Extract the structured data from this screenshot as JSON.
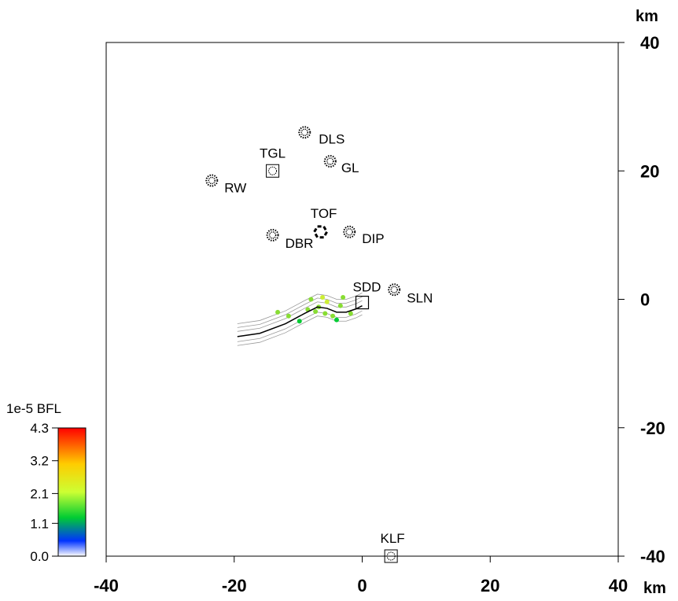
{
  "map": {
    "x_unit": "km",
    "y_unit": "km",
    "x_range": [
      -40,
      40
    ],
    "y_range": [
      -40,
      40
    ],
    "x_ticks": [
      {
        "value": -40,
        "label": "-40"
      },
      {
        "value": -20,
        "label": "-20"
      },
      {
        "value": 0,
        "label": "0"
      },
      {
        "value": 20,
        "label": "20"
      },
      {
        "value": 40,
        "label": "40"
      }
    ],
    "y_ticks": [
      {
        "value": 40,
        "label": "40"
      },
      {
        "value": 20,
        "label": "20"
      },
      {
        "value": 0,
        "label": "0"
      },
      {
        "value": -20,
        "label": "-20"
      },
      {
        "value": -40,
        "label": "-40"
      }
    ],
    "sites": [
      {
        "label": "DLS",
        "x": -9,
        "y": 26,
        "marker": "dotted-circle"
      },
      {
        "label": "TGL",
        "x": -14,
        "y": 20,
        "marker": "square-circle"
      },
      {
        "label": "GL",
        "x": -5,
        "y": 21.5,
        "marker": "dotted-circle"
      },
      {
        "label": "RW",
        "x": -23.5,
        "y": 18.5,
        "marker": "dotted-circle"
      },
      {
        "label": "TOF",
        "x": -6.5,
        "y": 10.5,
        "marker": "hexagon"
      },
      {
        "label": "DBR",
        "x": -14,
        "y": 10,
        "marker": "dotted-circle"
      },
      {
        "label": "DIP",
        "x": -2,
        "y": 10.5,
        "marker": "dotted-circle"
      },
      {
        "label": "SDD",
        "x": 0,
        "y": -0.5,
        "marker": "square"
      },
      {
        "label": "SLN",
        "x": 5,
        "y": 1.5,
        "marker": "dotted-circle"
      },
      {
        "label": "KLF",
        "x": 4.5,
        "y": -40,
        "marker": "square-circle"
      }
    ],
    "source_line": [
      [
        -19.5,
        -5.8
      ],
      [
        -16,
        -5.3
      ],
      [
        -12,
        -3.8
      ],
      [
        -9,
        -2.2
      ],
      [
        -7,
        -1.2
      ],
      [
        -5.5,
        -1.4
      ],
      [
        -4,
        -2.0
      ],
      [
        -2.5,
        -2.0
      ],
      [
        -1,
        -1.5
      ],
      [
        0,
        -1.0
      ]
    ],
    "deposition_points": [
      {
        "x": -6.2,
        "y": 0.3,
        "level": 2.8
      },
      {
        "x": -5.5,
        "y": -0.4,
        "level": 2.3
      },
      {
        "x": -6.8,
        "y": -1.2,
        "level": 1.9
      },
      {
        "x": -5.8,
        "y": -2.2,
        "level": 1.7
      },
      {
        "x": -4.6,
        "y": -2.6,
        "level": 1.5
      },
      {
        "x": -7.3,
        "y": -1.9,
        "level": 2.0
      },
      {
        "x": -8.5,
        "y": -1.6,
        "level": 1.4
      },
      {
        "x": -11.5,
        "y": -2.6,
        "level": 1.3
      },
      {
        "x": -13.2,
        "y": -2.0,
        "level": 1.4
      },
      {
        "x": -9.8,
        "y": -3.4,
        "level": 1.2
      },
      {
        "x": -3.4,
        "y": -1.0,
        "level": 1.6
      },
      {
        "x": -3.0,
        "y": 0.3,
        "level": 2.1
      },
      {
        "x": -1.8,
        "y": -2.2,
        "level": 1.3
      },
      {
        "x": -4.0,
        "y": -3.2,
        "level": 1.2
      },
      {
        "x": -8.0,
        "y": 0.0,
        "level": 1.6
      }
    ]
  },
  "legend": {
    "title": "1e-5 BFL",
    "ticks": [
      {
        "value": 4.3,
        "label": "4.3"
      },
      {
        "value": 3.2,
        "label": "3.2"
      },
      {
        "value": 2.1,
        "label": "2.1"
      },
      {
        "value": 1.1,
        "label": "1.1"
      },
      {
        "value": 0.0,
        "label": "0.0"
      }
    ],
    "range": [
      0.0,
      4.3
    ],
    "colors": [
      "#ffffff",
      "#0033ff",
      "#00cc33",
      "#ccff33",
      "#ffcc00",
      "#ff0000"
    ]
  }
}
